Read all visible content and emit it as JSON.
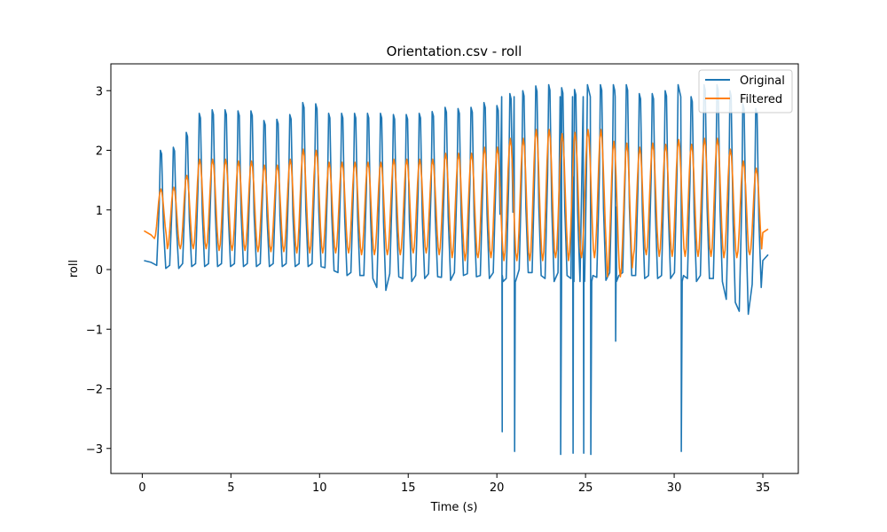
{
  "chart_data": {
    "type": "line",
    "title": "Orientation.csv - roll",
    "xlabel": "Time (s)",
    "ylabel": "roll",
    "xlim": [
      -1.77,
      37.0
    ],
    "ylim": [
      -3.42,
      3.45
    ],
    "xticks": [
      0,
      5,
      10,
      15,
      20,
      25,
      30,
      35
    ],
    "yticks": [
      -3,
      -2,
      -1,
      0,
      1,
      2,
      3
    ],
    "xtick_labels": [
      "0",
      "5",
      "10",
      "15",
      "20",
      "25",
      "30",
      "35"
    ],
    "ytick_labels": [
      "−3",
      "−2",
      "−1",
      "0",
      "1",
      "2",
      "3"
    ],
    "grid": false,
    "legend_position": "upper-right",
    "series": [
      {
        "name": "Original",
        "color": "#1f77b4",
        "x_range": [
          0.1,
          35.3
        ],
        "approx_period_s": 0.73,
        "peak_values": [
          2.0,
          2.05,
          2.3,
          2.62,
          2.68,
          2.68,
          2.66,
          2.66,
          2.5,
          2.52,
          2.6,
          2.8,
          2.78,
          2.62,
          2.62,
          2.62,
          2.62,
          2.62,
          2.6,
          2.6,
          2.62,
          2.65,
          2.72,
          2.7,
          2.72,
          2.8,
          2.75,
          2.95,
          3.0,
          3.08,
          3.1,
          3.05,
          3.02,
          3.1,
          3.1,
          3.1,
          3.1,
          2.95,
          2.95,
          3.0,
          3.1,
          2.9,
          3.1,
          3.1,
          3.0,
          2.78,
          2.7,
          2.25,
          2.15,
          2.1
        ],
        "trough_values": [
          0.02,
          0.02,
          0.05,
          0.05,
          0.05,
          0.05,
          0.05,
          0.05,
          0.05,
          0.05,
          0.05,
          0.05,
          0.05,
          -0.02,
          -0.1,
          -0.1,
          -0.15,
          -0.35,
          -0.12,
          -0.2,
          -0.15,
          -0.12,
          -0.18,
          -0.1,
          -0.12,
          -0.15,
          -0.1,
          -0.2,
          -0.05,
          -0.1,
          -0.2,
          -0.1,
          -0.2,
          -0.1,
          -0.18,
          -0.1,
          -0.1,
          -0.15,
          -0.15,
          -0.15,
          -0.1,
          -0.2,
          -0.15,
          -0.2,
          -0.55,
          -0.75,
          -0.3,
          -0.4,
          -0.3,
          -0.2
        ],
        "spikes": [
          {
            "x": 20.3,
            "y": -2.72
          },
          {
            "x": 21.0,
            "y": -3.05
          },
          {
            "x": 23.6,
            "y": -3.1
          },
          {
            "x": 24.3,
            "y": -3.08
          },
          {
            "x": 24.9,
            "y": -3.08
          },
          {
            "x": 25.3,
            "y": -3.1
          },
          {
            "x": 26.7,
            "y": -1.2
          },
          {
            "x": 30.4,
            "y": -3.05
          }
        ]
      },
      {
        "name": "Filtered",
        "color": "#ff7f0e",
        "x_range": [
          0.1,
          35.3
        ],
        "approx_period_s": 0.73,
        "peak_values": [
          1.35,
          1.38,
          1.58,
          1.85,
          1.85,
          1.85,
          1.82,
          1.82,
          1.75,
          1.75,
          1.85,
          2.02,
          2.0,
          1.8,
          1.8,
          1.8,
          1.8,
          1.8,
          1.85,
          1.85,
          1.85,
          1.85,
          1.95,
          1.95,
          1.95,
          2.05,
          2.05,
          2.2,
          2.2,
          2.35,
          2.35,
          2.28,
          2.3,
          2.35,
          2.35,
          2.15,
          2.12,
          2.05,
          2.12,
          2.1,
          2.18,
          2.1,
          2.2,
          2.2,
          2.02,
          1.82,
          1.7,
          1.45,
          1.62,
          1.65
        ],
        "trough_values": [
          0.52,
          0.35,
          0.35,
          0.35,
          0.35,
          0.32,
          0.32,
          0.32,
          0.3,
          0.3,
          0.3,
          0.28,
          0.28,
          0.28,
          0.28,
          0.28,
          0.25,
          0.25,
          0.25,
          0.25,
          0.28,
          0.28,
          0.25,
          0.2,
          0.15,
          0.2,
          0.2,
          0.15,
          0.15,
          0.15,
          0.15,
          0.2,
          0.15,
          0.2,
          0.2,
          -0.12,
          -0.12,
          0.22,
          0.25,
          0.22,
          0.22,
          0.22,
          0.22,
          0.22,
          0.2,
          0.2,
          0.25,
          0.35,
          0.62,
          0.62
        ]
      }
    ]
  }
}
